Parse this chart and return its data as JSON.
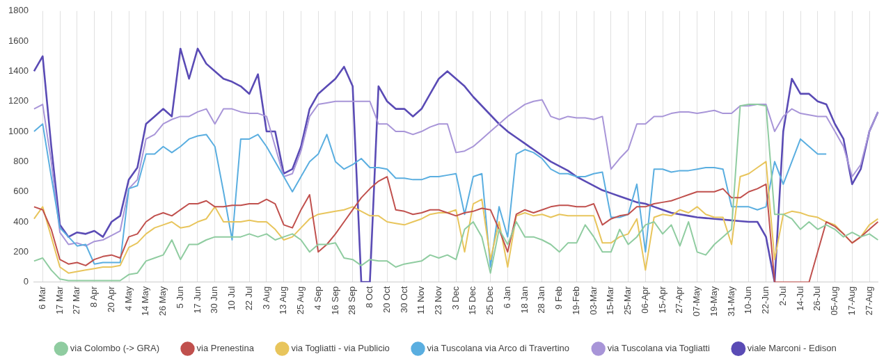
{
  "chart_data": {
    "type": "line",
    "categories": [
      null,
      "6 Mar",
      null,
      "17 Mar",
      null,
      "27 Mar",
      null,
      "8 Apr",
      null,
      "20 Apr",
      null,
      "4 May",
      null,
      "14 May",
      null,
      "26 May",
      null,
      "5 Jun",
      null,
      "17 Jun",
      null,
      "30 Jun",
      null,
      "10 Jul",
      null,
      "22 Jul",
      null,
      "3 Aug",
      null,
      "13 Aug",
      null,
      "25 Aug",
      null,
      "4 Sep",
      null,
      "16 Sep",
      null,
      "28 Sep",
      null,
      "8 Oct",
      null,
      "20 Oct",
      null,
      "30 Oct",
      null,
      "11 Nov",
      null,
      "23 Nov",
      null,
      "3 Dec",
      null,
      "15 Dec",
      null,
      "25 Dec",
      null,
      "6 Jan",
      null,
      "18 Jan",
      null,
      "28 Jan",
      null,
      "9 Feb",
      null,
      "19-Feb",
      null,
      "03-Mar",
      null,
      "15-Mar",
      null,
      "25-Mar",
      null,
      "06-Apr",
      null,
      "15-Apr",
      null,
      "27-Apr",
      null,
      "07-May",
      null,
      "19-May",
      null,
      "31-May",
      null,
      "10-Jun",
      null,
      "22-Jun",
      null,
      "2-Jul",
      null,
      "14-Jul",
      null,
      "26-Jul",
      null,
      "05-Aug",
      null,
      "17-Aug",
      null,
      "27-Aug",
      null
    ],
    "series": [
      {
        "name": "via Colombo (-> GRA)",
        "color": "#8fcca0",
        "values": [
          140,
          160,
          80,
          20,
          10,
          10,
          10,
          10,
          10,
          10,
          10,
          50,
          60,
          140,
          160,
          180,
          280,
          150,
          250,
          250,
          280,
          300,
          300,
          300,
          300,
          320,
          300,
          320,
          280,
          300,
          320,
          280,
          200,
          250,
          250,
          260,
          160,
          150,
          110,
          150,
          140,
          140,
          100,
          120,
          130,
          140,
          180,
          160,
          180,
          150,
          350,
          400,
          300,
          60,
          350,
          250,
          400,
          300,
          300,
          280,
          250,
          200,
          260,
          260,
          380,
          300,
          200,
          200,
          350,
          250,
          300,
          380,
          400,
          320,
          380,
          240,
          400,
          200,
          180,
          250,
          300,
          350,
          1170,
          1180,
          1180,
          1170,
          450,
          450,
          420,
          350,
          400,
          350,
          380,
          350,
          300,
          330,
          300,
          320,
          280
        ]
      },
      {
        "name": "via Prenestina",
        "color": "#c0504d",
        "values": [
          500,
          480,
          350,
          150,
          120,
          130,
          110,
          150,
          170,
          180,
          160,
          300,
          320,
          400,
          440,
          460,
          440,
          480,
          520,
          520,
          540,
          500,
          500,
          510,
          510,
          520,
          520,
          550,
          520,
          380,
          360,
          480,
          580,
          200,
          250,
          320,
          400,
          480,
          560,
          620,
          670,
          700,
          480,
          470,
          450,
          460,
          480,
          480,
          460,
          440,
          460,
          470,
          490,
          480,
          350,
          200,
          450,
          480,
          460,
          480,
          500,
          510,
          510,
          500,
          500,
          520,
          380,
          420,
          440,
          450,
          500,
          500,
          520,
          530,
          540,
          560,
          580,
          600,
          600,
          600,
          620,
          560,
          560,
          600,
          620,
          650,
          0,
          0,
          0,
          0,
          0,
          200,
          400,
          370,
          320,
          260,
          300,
          350,
          400
        ]
      },
      {
        "name": "via Togliatti - via Publicio",
        "color": "#e8c55c",
        "values": [
          420,
          500,
          300,
          100,
          60,
          70,
          80,
          90,
          100,
          100,
          110,
          230,
          260,
          320,
          360,
          380,
          400,
          360,
          370,
          400,
          420,
          500,
          400,
          400,
          400,
          410,
          400,
          400,
          350,
          280,
          300,
          360,
          420,
          450,
          460,
          470,
          480,
          500,
          470,
          440,
          440,
          400,
          390,
          380,
          400,
          420,
          450,
          460,
          460,
          480,
          200,
          520,
          550,
          150,
          400,
          100,
          440,
          460,
          440,
          450,
          430,
          450,
          440,
          440,
          440,
          440,
          260,
          260,
          300,
          320,
          420,
          80,
          430,
          450,
          440,
          480,
          460,
          500,
          450,
          430,
          430,
          250,
          700,
          720,
          760,
          800,
          150,
          450,
          470,
          460,
          440,
          430,
          400,
          380,
          320,
          260,
          300,
          380,
          420
        ]
      },
      {
        "name": "via Tuscolana via Arco di Travertino",
        "color": "#5aaee0",
        "values": [
          1000,
          1050,
          700,
          360,
          300,
          240,
          250,
          120,
          130,
          130,
          130,
          620,
          640,
          850,
          850,
          900,
          860,
          900,
          950,
          970,
          980,
          900,
          600,
          280,
          950,
          950,
          980,
          900,
          800,
          700,
          600,
          700,
          800,
          850,
          980,
          800,
          750,
          780,
          820,
          760,
          760,
          750,
          690,
          690,
          680,
          680,
          700,
          700,
          710,
          720,
          450,
          700,
          720,
          100,
          500,
          300,
          850,
          880,
          860,
          820,
          750,
          720,
          720,
          700,
          700,
          720,
          730,
          430,
          430,
          450,
          650,
          200,
          750,
          750,
          730,
          740,
          740,
          750,
          760,
          760,
          750,
          500,
          500,
          500,
          480,
          500,
          800,
          650,
          800,
          950,
          900,
          850,
          850,
          null,
          null,
          null,
          null,
          null,
          null
        ]
      },
      {
        "name": "via Tuscolana via Togliatti",
        "color": "#a895d8",
        "values": [
          1150,
          1180,
          800,
          330,
          250,
          260,
          240,
          270,
          280,
          310,
          340,
          620,
          680,
          950,
          980,
          1050,
          1080,
          1100,
          1100,
          1130,
          1150,
          1050,
          1150,
          1150,
          1130,
          1120,
          1120,
          1100,
          900,
          700,
          720,
          870,
          1100,
          1180,
          1190,
          1200,
          1200,
          1200,
          1200,
          1200,
          1050,
          1050,
          1000,
          1000,
          980,
          1000,
          1030,
          1050,
          1050,
          860,
          870,
          900,
          950,
          1000,
          1050,
          1100,
          1140,
          1180,
          1200,
          1210,
          1100,
          1080,
          1100,
          1090,
          1090,
          1080,
          1100,
          750,
          820,
          880,
          1050,
          1050,
          1100,
          1100,
          1120,
          1130,
          1130,
          1120,
          1130,
          1140,
          1120,
          1120,
          1170,
          1170,
          1180,
          1180,
          1000,
          1100,
          1150,
          1120,
          1110,
          1100,
          1100,
          1000,
          900,
          700,
          780,
          1000,
          1130
        ]
      },
      {
        "name": "viale Marconi - Edison",
        "color": "#5a4bb5",
        "values": [
          1400,
          1500,
          900,
          380,
          300,
          330,
          320,
          340,
          300,
          400,
          440,
          680,
          760,
          1050,
          1100,
          1150,
          1100,
          1550,
          1350,
          1550,
          1450,
          1400,
          1350,
          1330,
          1300,
          1250,
          1380,
          1000,
          1000,
          720,
          750,
          900,
          1150,
          1250,
          1300,
          1350,
          1430,
          1300,
          0,
          0,
          1300,
          1200,
          1150,
          1150,
          1100,
          1150,
          1250,
          1350,
          1400,
          1350,
          1300,
          1230,
          1170,
          1110,
          1050,
          1000,
          960,
          920,
          880,
          840,
          800,
          770,
          740,
          700,
          670,
          640,
          610,
          590,
          570,
          550,
          530,
          520,
          500,
          480,
          460,
          450,
          440,
          430,
          425,
          420,
          415,
          410,
          405,
          400,
          400,
          300,
          0,
          1000,
          1350,
          1250,
          1250,
          1200,
          1180,
          1050,
          950,
          650,
          750,
          1000,
          1130
        ]
      }
    ],
    "ylim": [
      0,
      1800
    ],
    "yticks": [
      0,
      200,
      400,
      600,
      800,
      1000,
      1200,
      1400,
      1600,
      1800
    ],
    "grid": "x",
    "legend": "bottom"
  }
}
